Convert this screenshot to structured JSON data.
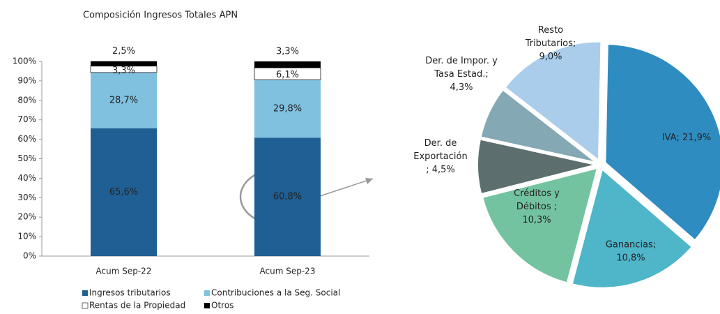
{
  "chart_data": [
    {
      "type": "bar",
      "stacked": true,
      "title": "Composición Ingresos Totales APN",
      "categories": [
        "Acum Sep-22",
        "Acum Sep-23"
      ],
      "series": [
        {
          "name": "Ingresos tributarios",
          "color": "#1f5f93",
          "values": [
            65.6,
            60.8
          ],
          "value_labels": [
            "65,6%",
            "60,8%"
          ]
        },
        {
          "name": "Contribuciones a la Seg. Social",
          "color": "#7fc1df",
          "values": [
            28.7,
            29.8
          ],
          "value_labels": [
            "28,7%",
            "29,8%"
          ]
        },
        {
          "name": "Rentas de la Propiedad",
          "color": "#ffffff",
          "values": [
            3.3,
            6.1
          ],
          "value_labels": [
            "3,3%",
            "6,1%"
          ]
        },
        {
          "name": "Otros",
          "color": "#000000",
          "values": [
            2.5,
            3.3
          ],
          "value_labels": [
            "2,5%",
            "3,3%"
          ]
        }
      ],
      "ylim": [
        0,
        100
      ],
      "yticks": [
        {
          "value": 0,
          "label": "0%"
        },
        {
          "value": 10,
          "label": "10%"
        },
        {
          "value": 20,
          "label": "20%"
        },
        {
          "value": 30,
          "label": "30%"
        },
        {
          "value": 40,
          "label": "40%"
        },
        {
          "value": 50,
          "label": "50%"
        },
        {
          "value": 60,
          "label": "60%"
        },
        {
          "value": 70,
          "label": "70%"
        },
        {
          "value": 80,
          "label": "80%"
        },
        {
          "value": 90,
          "label": "90%"
        },
        {
          "value": 100,
          "label": "100%"
        }
      ],
      "grid": false,
      "legend": "bottom"
    },
    {
      "type": "pie",
      "categories": [
        "IVA",
        "Ganancias",
        "Créditos y Débitos",
        "Der. de Exportación",
        "Der. de Impor. y Tasa Estad.",
        "Resto Tributarios"
      ],
      "values": [
        21.9,
        10.8,
        10.3,
        4.5,
        4.3,
        9.0
      ],
      "value_labels": [
        "IVA; 21,9%",
        "Ganancias;\n10,8%",
        "Créditos y\nDébitos ;\n10,3%",
        "Der. de\nExportación\n; 4,5%",
        "Der. de Impor. y\nTasa Estad.;\n4,3%",
        "Resto\nTributarios;\n9,0%"
      ],
      "colors": [
        "#2f8cc0",
        "#4fb5c9",
        "#74c3a0",
        "#5c6f6e",
        "#84a8b4",
        "#a9cdeb"
      ]
    }
  ]
}
